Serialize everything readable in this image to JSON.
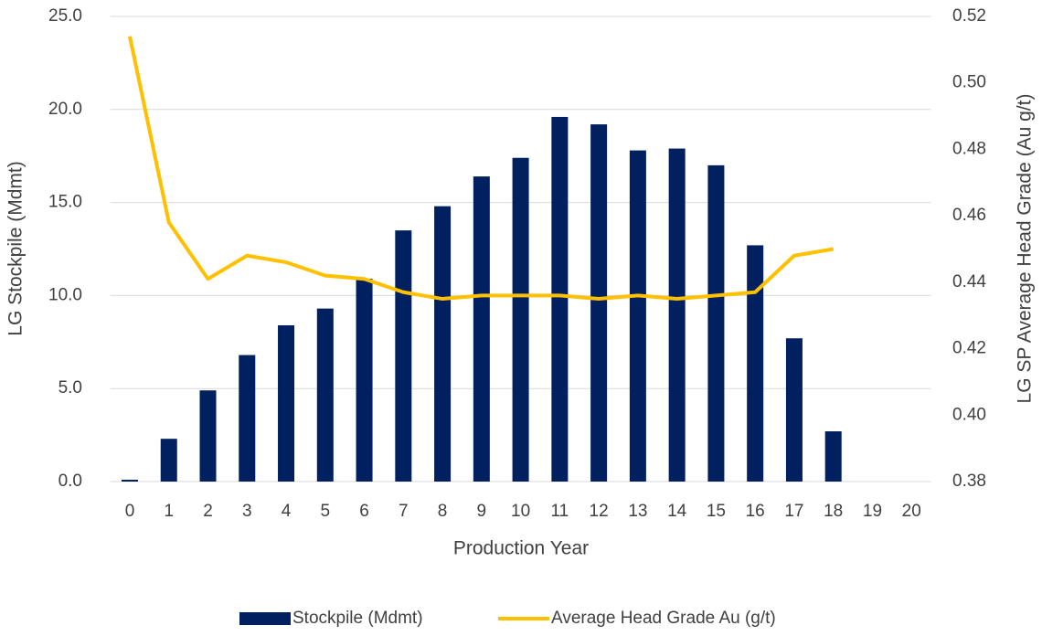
{
  "chart_data": {
    "type": "bar-line",
    "x_label": "Production Year",
    "y_label": "LG Stockpile (Mdmt)",
    "y2_label": "LG SP Average Head Grade (Au g/t)",
    "categories": [
      "0",
      "1",
      "2",
      "3",
      "4",
      "5",
      "6",
      "7",
      "8",
      "9",
      "10",
      "11",
      "12",
      "13",
      "14",
      "15",
      "16",
      "17",
      "18",
      "19",
      "20"
    ],
    "series": [
      {
        "name": "Stockpile (Mdmt)",
        "type": "bar",
        "color": "#002060",
        "values": [
          0.1,
          2.3,
          4.9,
          6.8,
          8.4,
          9.3,
          10.9,
          13.5,
          14.8,
          16.4,
          17.4,
          19.6,
          19.2,
          17.8,
          17.9,
          17.0,
          12.7,
          7.7,
          2.7,
          null,
          null
        ]
      },
      {
        "name": "Average Head Grade Au (g/t)",
        "type": "line",
        "axis": "y2",
        "color": "#ffc000",
        "values": [
          0.514,
          0.458,
          0.441,
          0.448,
          0.446,
          0.442,
          0.441,
          0.437,
          0.435,
          0.436,
          0.436,
          0.436,
          0.435,
          0.436,
          0.435,
          0.436,
          0.437,
          0.448,
          0.45,
          null,
          null
        ]
      }
    ],
    "ylim": [
      0,
      25
    ],
    "yticks": [
      {
        "value": 0,
        "label": "0.0"
      },
      {
        "value": 5,
        "label": "5.0"
      },
      {
        "value": 10,
        "label": "10.0"
      },
      {
        "value": 15,
        "label": "15.0"
      },
      {
        "value": 20,
        "label": "20.0"
      },
      {
        "value": 25,
        "label": "25.0"
      }
    ],
    "y2lim": [
      0.38,
      0.52
    ],
    "y2ticks": [
      0.38,
      {
        "value": 0.4,
        "label": "0.40"
      },
      0.42,
      0.44,
      0.46,
      0.48,
      {
        "value": 0.5,
        "label": "0.50"
      },
      0.52
    ],
    "grid": true,
    "legend": "bottom"
  }
}
